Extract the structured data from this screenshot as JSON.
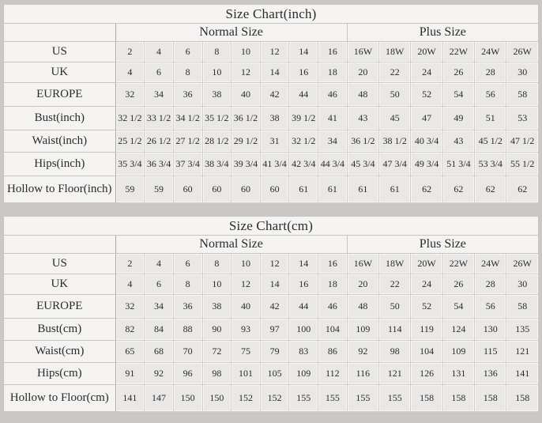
{
  "colors": {
    "page_background": "#c9c8c6",
    "light_cell": "#f4f3f1",
    "data_cell": "#e9e8e6",
    "border": "#c6c5c3",
    "text": "#2b2b2b"
  },
  "tables": [
    {
      "title": "Size Chart(inch)",
      "normal_header": "Normal Size",
      "plus_header": "Plus Size",
      "rows": [
        {
          "label": "US",
          "values": [
            "2",
            "4",
            "6",
            "8",
            "10",
            "12",
            "14",
            "16",
            "16W",
            "18W",
            "20W",
            "22W",
            "24W",
            "26W"
          ]
        },
        {
          "label": "UK",
          "values": [
            "4",
            "6",
            "8",
            "10",
            "12",
            "14",
            "16",
            "18",
            "20",
            "22",
            "24",
            "26",
            "28",
            "30"
          ]
        },
        {
          "label": "EUROPE",
          "values": [
            "32",
            "34",
            "36",
            "38",
            "40",
            "42",
            "44",
            "46",
            "48",
            "50",
            "52",
            "54",
            "56",
            "58"
          ]
        },
        {
          "label": "Bust(inch)",
          "values": [
            "32 1/2",
            "33 1/2",
            "34 1/2",
            "35 1/2",
            "36 1/2",
            "38",
            "39 1/2",
            "41",
            "43",
            "45",
            "47",
            "49",
            "51",
            "53"
          ]
        },
        {
          "label": "Waist(inch)",
          "values": [
            "25 1/2",
            "26 1/2",
            "27 1/2",
            "28 1/2",
            "29 1/2",
            "31",
            "32 1/2",
            "34",
            "36 1/2",
            "38 1/2",
            "40 3/4",
            "43",
            "45 1/2",
            "47 1/2"
          ]
        },
        {
          "label": "Hips(inch)",
          "values": [
            "35 3/4",
            "36 3/4",
            "37 3/4",
            "38 3/4",
            "39 3/4",
            "41 3/4",
            "42 3/4",
            "44 3/4",
            "45 3/4",
            "47 3/4",
            "49 3/4",
            "51 3/4",
            "53 3/4",
            "55 1/2"
          ]
        },
        {
          "label": "Hollow to Floor(inch)",
          "values": [
            "59",
            "59",
            "60",
            "60",
            "60",
            "60",
            "61",
            "61",
            "61",
            "61",
            "62",
            "62",
            "62",
            "62"
          ]
        }
      ]
    },
    {
      "title": "Size Chart(cm)",
      "normal_header": "Normal Size",
      "plus_header": "Plus Size",
      "rows": [
        {
          "label": "US",
          "values": [
            "2",
            "4",
            "6",
            "8",
            "10",
            "12",
            "14",
            "16",
            "16W",
            "18W",
            "20W",
            "22W",
            "24W",
            "26W"
          ]
        },
        {
          "label": "UK",
          "values": [
            "4",
            "6",
            "8",
            "10",
            "12",
            "14",
            "16",
            "18",
            "20",
            "22",
            "24",
            "26",
            "28",
            "30"
          ]
        },
        {
          "label": "EUROPE",
          "values": [
            "32",
            "34",
            "36",
            "38",
            "40",
            "42",
            "44",
            "46",
            "48",
            "50",
            "52",
            "54",
            "56",
            "58"
          ]
        },
        {
          "label": "Bust(cm)",
          "values": [
            "82",
            "84",
            "88",
            "90",
            "93",
            "97",
            "100",
            "104",
            "109",
            "114",
            "119",
            "124",
            "130",
            "135"
          ]
        },
        {
          "label": "Waist(cm)",
          "values": [
            "65",
            "68",
            "70",
            "72",
            "75",
            "79",
            "83",
            "86",
            "92",
            "98",
            "104",
            "109",
            "115",
            "121"
          ]
        },
        {
          "label": "Hips(cm)",
          "values": [
            "91",
            "92",
            "96",
            "98",
            "101",
            "105",
            "109",
            "112",
            "116",
            "121",
            "126",
            "131",
            "136",
            "141"
          ]
        },
        {
          "label": "Hollow to Floor(cm)",
          "values": [
            "141",
            "147",
            "150",
            "150",
            "152",
            "152",
            "155",
            "155",
            "155",
            "155",
            "158",
            "158",
            "158",
            "158"
          ]
        }
      ]
    }
  ]
}
